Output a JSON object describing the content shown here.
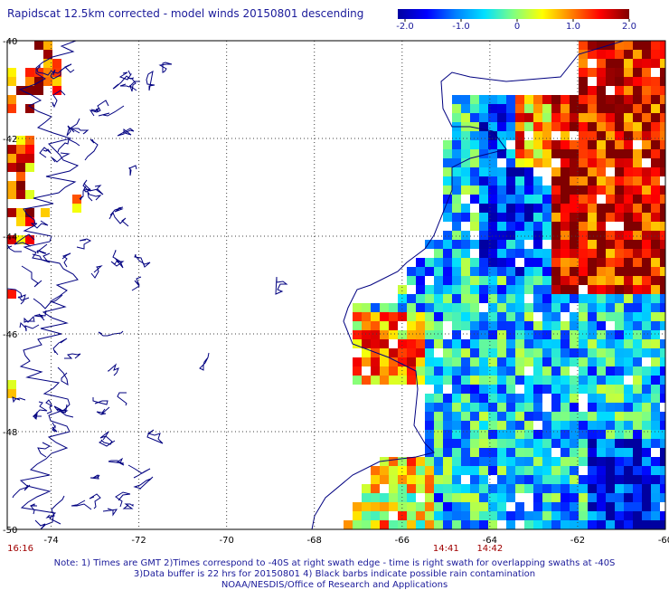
{
  "title": "Rapidscat 12.5km corrected - model winds 20150801 descending",
  "colorbar": {
    "ticks": [
      "-2.0",
      "-1.0",
      "0",
      "1.0",
      "2.0"
    ],
    "stops": [
      "#0000a0",
      "#0000ff",
      "#0080ff",
      "#00e0ff",
      "#80ff80",
      "#ffff00",
      "#ff8000",
      "#ff0000",
      "#800000"
    ]
  },
  "map": {
    "lat_labels": [
      "-40",
      "-42",
      "-44",
      "-46",
      "-48",
      "-50"
    ],
    "lon_labels": [
      "-74",
      "-72",
      "-70",
      "-68",
      "-66",
      "-64",
      "-62",
      "-60"
    ],
    "lon_range": [
      -75,
      -60
    ],
    "lat_range": [
      -50,
      -40
    ],
    "time_labels": [
      {
        "text": "16:16",
        "lon": -74.7
      },
      {
        "text": "14:41",
        "lon": -65.0
      },
      {
        "text": "14:42",
        "lon": -64.0
      }
    ],
    "colors": {
      "coast": "#000080",
      "grid": "#404040",
      "time_text": "#a00000",
      "label_text": "#000000"
    }
  },
  "notes": [
    "Note: 1) Times are GMT 2)Times correspond to -40S at right swath edge - time is right swath for overlapping swaths at -40S",
    "3)Data buffer is 22 hrs for 20150801 4) Black barbs indicate possible rain contamination",
    "NOAA/NESDIS/Office of Research and Applications"
  ]
}
